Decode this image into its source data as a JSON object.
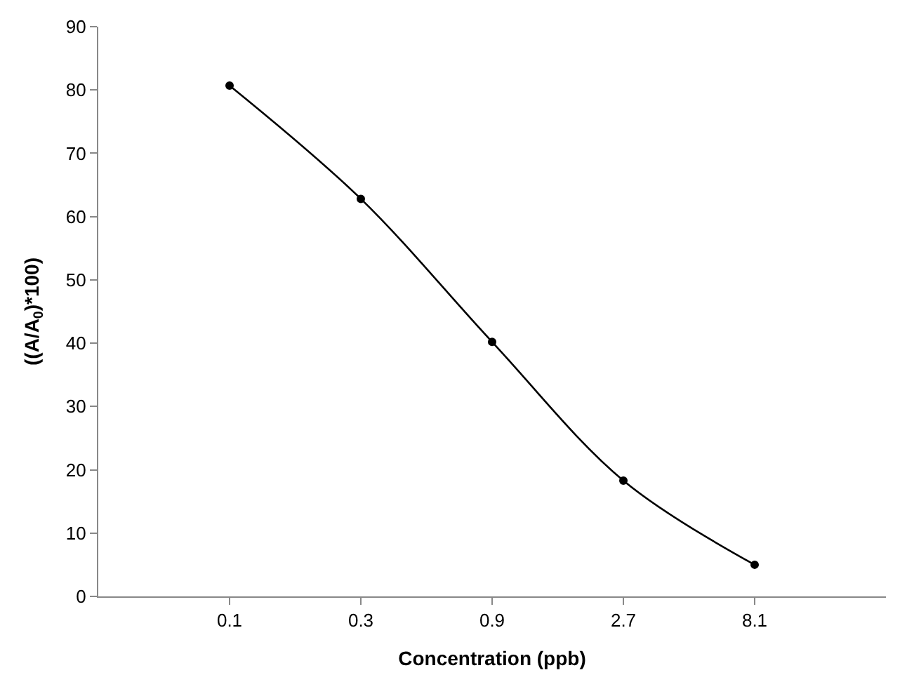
{
  "chart_data": {
    "type": "line",
    "xlabel": "Concentration (ppb)",
    "ylabel": "((A/A$_{0}$)*100)",
    "categories": [
      "0.1",
      "0.3",
      "0.9",
      "2.7",
      "8.1"
    ],
    "series": [
      {
        "color": "#000000",
        "values": [
          80.7,
          62.8,
          40.2,
          18.3,
          5.0
        ]
      }
    ],
    "ylim": [
      0,
      90
    ],
    "yticks": [
      0,
      10,
      20,
      30,
      40,
      50,
      60,
      70,
      80,
      90
    ],
    "legend": false,
    "marker": "circle",
    "line_style": "solid"
  }
}
